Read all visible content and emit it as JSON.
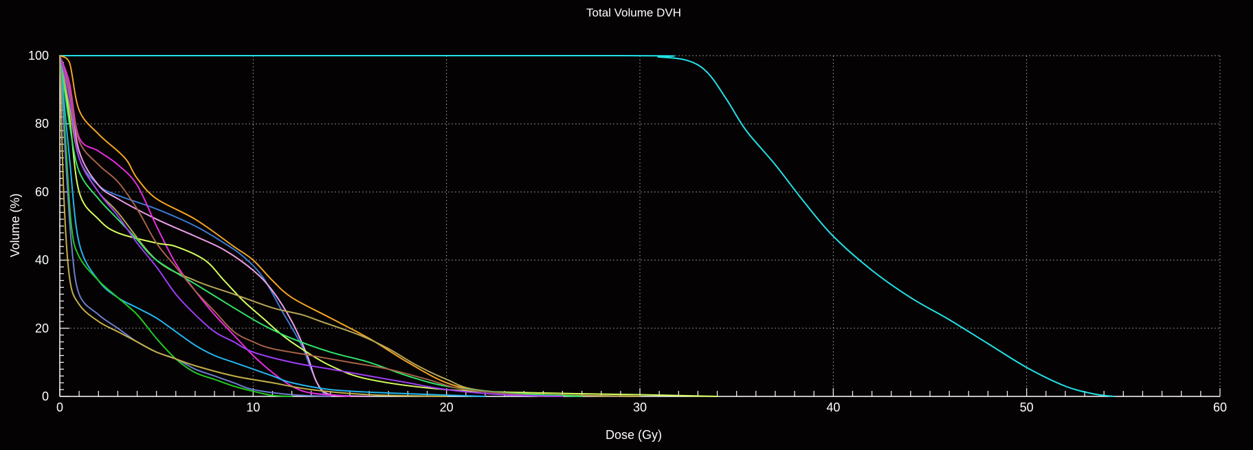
{
  "chart_data": {
    "type": "line",
    "title": "Total Volume DVH",
    "xlabel": "Dose (Gy)",
    "ylabel": "Volume (%)",
    "xlim": [
      0,
      60
    ],
    "ylim": [
      0,
      100
    ],
    "x_ticks": [
      0,
      10,
      20,
      30,
      40,
      50,
      60
    ],
    "y_ticks": [
      0,
      20,
      40,
      60,
      80,
      100
    ],
    "grid": true,
    "series": [
      {
        "color": "#21e3e8",
        "points": [
          [
            0,
            100
          ],
          [
            29,
            100
          ],
          [
            31,
            99.6
          ],
          [
            32.5,
            98.5
          ],
          [
            33.5,
            95
          ],
          [
            34.5,
            87
          ],
          [
            35.5,
            78
          ],
          [
            37,
            68
          ],
          [
            38.5,
            57
          ],
          [
            40,
            47
          ],
          [
            42,
            37
          ],
          [
            44,
            29
          ],
          [
            46,
            22.5
          ],
          [
            48,
            15.5
          ],
          [
            50,
            8.5
          ],
          [
            52,
            3
          ],
          [
            53.5,
            0.7
          ],
          [
            54.5,
            0
          ]
        ]
      },
      {
        "color": "#f5a623",
        "points": [
          [
            0,
            100
          ],
          [
            0.5,
            98
          ],
          [
            1,
            84
          ],
          [
            2,
            77
          ],
          [
            3,
            72
          ],
          [
            3.5,
            69
          ],
          [
            4,
            64
          ],
          [
            5,
            58
          ],
          [
            7,
            52
          ],
          [
            9,
            44
          ],
          [
            10,
            40
          ],
          [
            11,
            34
          ],
          [
            12,
            29
          ],
          [
            14,
            23
          ],
          [
            16,
            17
          ],
          [
            18,
            10
          ],
          [
            20,
            4
          ],
          [
            22,
            1.5
          ],
          [
            25,
            0.5
          ],
          [
            30,
            0
          ]
        ]
      },
      {
        "color": "#3a7bd5",
        "points": [
          [
            0,
            100
          ],
          [
            0.5,
            88
          ],
          [
            1,
            70
          ],
          [
            2,
            62
          ],
          [
            3,
            59
          ],
          [
            5,
            55
          ],
          [
            7,
            50
          ],
          [
            8.5,
            45
          ],
          [
            9.5,
            41
          ],
          [
            10.5,
            35
          ],
          [
            11.5,
            25
          ],
          [
            12.5,
            15
          ],
          [
            13,
            8
          ],
          [
            13.5,
            2
          ],
          [
            14,
            0.5
          ],
          [
            16,
            0
          ]
        ]
      },
      {
        "color": "#f0a0e8",
        "points": [
          [
            0,
            100
          ],
          [
            0.5,
            90
          ],
          [
            1,
            72
          ],
          [
            2,
            62
          ],
          [
            3,
            58
          ],
          [
            5,
            52
          ],
          [
            7,
            47
          ],
          [
            8.5,
            43
          ],
          [
            10,
            37
          ],
          [
            11,
            31
          ],
          [
            12,
            22
          ],
          [
            12.8,
            12
          ],
          [
            13.3,
            4
          ],
          [
            14,
            0.5
          ],
          [
            16,
            0
          ]
        ]
      },
      {
        "color": "#e82ce0",
        "points": [
          [
            0,
            100
          ],
          [
            0.5,
            92
          ],
          [
            1,
            76
          ],
          [
            2,
            72
          ],
          [
            3,
            68
          ],
          [
            4,
            62
          ],
          [
            5,
            50
          ],
          [
            6,
            39
          ],
          [
            7,
            31
          ],
          [
            8,
            24
          ],
          [
            9,
            18
          ],
          [
            10,
            12
          ],
          [
            11,
            7
          ],
          [
            12,
            3
          ],
          [
            13,
            1
          ],
          [
            15,
            0
          ]
        ]
      },
      {
        "color": "#d8ff60",
        "points": [
          [
            0,
            100
          ],
          [
            0.5,
            82
          ],
          [
            1,
            60
          ],
          [
            2,
            52
          ],
          [
            3,
            48
          ],
          [
            5,
            45
          ],
          [
            6,
            44
          ],
          [
            7.5,
            40
          ],
          [
            8.5,
            34
          ],
          [
            9.5,
            28
          ],
          [
            10.5,
            23
          ],
          [
            11.5,
            18
          ],
          [
            12.5,
            14
          ],
          [
            14,
            9
          ],
          [
            16,
            5
          ],
          [
            20,
            2
          ],
          [
            25,
            1
          ],
          [
            30,
            0.5
          ],
          [
            34,
            0
          ]
        ]
      },
      {
        "color": "#b7a857",
        "points": [
          [
            0,
            100
          ],
          [
            0.5,
            85
          ],
          [
            1,
            70
          ],
          [
            2,
            60
          ],
          [
            3,
            54
          ],
          [
            5,
            40
          ],
          [
            7,
            34
          ],
          [
            9,
            30
          ],
          [
            11,
            26
          ],
          [
            12.5,
            24
          ],
          [
            13.5,
            22
          ],
          [
            15.5,
            18
          ],
          [
            17,
            14
          ],
          [
            18.5,
            9
          ],
          [
            20,
            5
          ],
          [
            21.5,
            2
          ],
          [
            25,
            0.5
          ],
          [
            30,
            0
          ]
        ]
      },
      {
        "color": "#2fe66b",
        "points": [
          [
            0,
            100
          ],
          [
            0.5,
            80
          ],
          [
            1,
            66
          ],
          [
            2,
            58
          ],
          [
            3,
            52
          ],
          [
            4,
            46
          ],
          [
            5,
            40
          ],
          [
            7,
            33
          ],
          [
            9,
            26
          ],
          [
            10.5,
            21
          ],
          [
            12,
            17
          ],
          [
            14,
            13
          ],
          [
            16,
            10
          ],
          [
            18,
            6
          ],
          [
            20,
            3
          ],
          [
            23,
            1
          ],
          [
            27,
            0
          ]
        ]
      },
      {
        "color": "#a8634a",
        "points": [
          [
            0,
            100
          ],
          [
            0.5,
            90
          ],
          [
            1,
            75
          ],
          [
            2,
            68
          ],
          [
            3,
            63
          ],
          [
            4,
            55
          ],
          [
            5,
            45
          ],
          [
            6,
            38
          ],
          [
            7,
            31
          ],
          [
            8,
            25
          ],
          [
            9,
            19
          ],
          [
            10,
            16
          ],
          [
            11,
            14
          ],
          [
            13,
            12
          ],
          [
            15,
            10
          ],
          [
            17,
            8
          ],
          [
            19,
            5
          ],
          [
            21,
            2
          ],
          [
            25,
            0
          ]
        ]
      },
      {
        "color": "#a03ef5",
        "points": [
          [
            0,
            100
          ],
          [
            0.5,
            88
          ],
          [
            1,
            70
          ],
          [
            2,
            60
          ],
          [
            3,
            53
          ],
          [
            4,
            45
          ],
          [
            5,
            38
          ],
          [
            6,
            30
          ],
          [
            7,
            24
          ],
          [
            8,
            19
          ],
          [
            9,
            16
          ],
          [
            10,
            13
          ],
          [
            12,
            10
          ],
          [
            14,
            8
          ],
          [
            16,
            6
          ],
          [
            18,
            4
          ],
          [
            20,
            2
          ],
          [
            23,
            0.5
          ],
          [
            26,
            0
          ]
        ]
      },
      {
        "color": "#22b8f2",
        "points": [
          [
            0,
            100
          ],
          [
            0.5,
            70
          ],
          [
            1,
            45
          ],
          [
            2,
            34
          ],
          [
            3,
            29
          ],
          [
            4,
            26
          ],
          [
            5,
            23
          ],
          [
            6,
            19
          ],
          [
            7,
            15
          ],
          [
            8,
            12
          ],
          [
            9,
            10
          ],
          [
            10,
            8
          ],
          [
            11,
            6
          ],
          [
            12,
            4
          ],
          [
            14,
            2
          ],
          [
            17,
            1
          ],
          [
            22,
            0
          ]
        ]
      },
      {
        "color": "#22cc22",
        "points": [
          [
            0,
            100
          ],
          [
            0.3,
            75
          ],
          [
            0.6,
            50
          ],
          [
            1,
            41
          ],
          [
            2,
            34
          ],
          [
            3,
            29
          ],
          [
            4,
            24
          ],
          [
            5,
            17
          ],
          [
            6,
            11
          ],
          [
            7,
            7
          ],
          [
            8,
            5
          ],
          [
            9,
            3
          ],
          [
            10,
            1.5
          ],
          [
            11,
            0.3
          ],
          [
            12,
            0
          ]
        ]
      },
      {
        "color": "#6d7fd0",
        "points": [
          [
            0,
            100
          ],
          [
            0.3,
            70
          ],
          [
            0.6,
            45
          ],
          [
            1,
            30
          ],
          [
            2,
            24
          ],
          [
            3,
            20
          ],
          [
            4,
            16
          ],
          [
            5,
            13
          ],
          [
            6,
            11
          ],
          [
            7,
            8
          ],
          [
            8,
            6
          ],
          [
            9,
            4
          ],
          [
            10,
            2
          ],
          [
            12,
            0.5
          ],
          [
            14,
            0
          ]
        ]
      },
      {
        "color": "#c4b04a",
        "points": [
          [
            0,
            100
          ],
          [
            0.2,
            60
          ],
          [
            0.5,
            35
          ],
          [
            1,
            27
          ],
          [
            2,
            22
          ],
          [
            3,
            19
          ],
          [
            4,
            16
          ],
          [
            5,
            13
          ],
          [
            6,
            11
          ],
          [
            7,
            9
          ],
          [
            9,
            6
          ],
          [
            11,
            4
          ],
          [
            13,
            2
          ],
          [
            16,
            0.5
          ],
          [
            20,
            0
          ]
        ]
      }
    ]
  }
}
